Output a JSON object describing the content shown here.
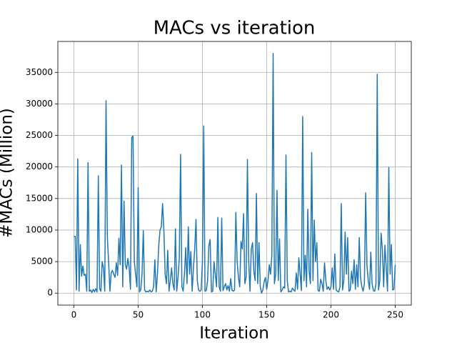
{
  "chart_data": {
    "type": "line",
    "title": "MACs vs iteration",
    "x_label": "Iteration",
    "y_label": "#MACs (Million)",
    "xlim": [
      -12.5,
      262.5
    ],
    "ylim": [
      -1900,
      39900
    ],
    "xticks": [
      0,
      50,
      100,
      150,
      200,
      250
    ],
    "yticks": [
      0,
      5000,
      10000,
      15000,
      20000,
      25000,
      30000,
      35000
    ],
    "grid": true,
    "x": [
      0,
      1,
      2,
      3,
      4,
      5,
      6,
      7,
      8,
      9,
      10,
      11,
      12,
      13,
      14,
      15,
      16,
      17,
      18,
      19,
      20,
      21,
      22,
      23,
      24,
      25,
      26,
      27,
      28,
      29,
      30,
      31,
      32,
      33,
      34,
      35,
      36,
      37,
      38,
      39,
      40,
      41,
      42,
      43,
      44,
      45,
      46,
      47,
      48,
      49,
      50,
      51,
      52,
      53,
      54,
      55,
      56,
      57,
      58,
      59,
      60,
      61,
      62,
      63,
      64,
      65,
      66,
      67,
      68,
      69,
      70,
      71,
      72,
      73,
      74,
      75,
      76,
      77,
      78,
      79,
      80,
      81,
      82,
      83,
      84,
      85,
      86,
      87,
      88,
      89,
      90,
      91,
      92,
      93,
      94,
      95,
      96,
      97,
      98,
      99,
      100,
      101,
      102,
      103,
      104,
      105,
      106,
      107,
      108,
      109,
      110,
      111,
      112,
      113,
      114,
      115,
      116,
      117,
      118,
      119,
      120,
      121,
      122,
      123,
      124,
      125,
      126,
      127,
      128,
      129,
      130,
      131,
      132,
      133,
      134,
      135,
      136,
      137,
      138,
      139,
      140,
      141,
      142,
      143,
      144,
      145,
      146,
      147,
      148,
      149,
      150,
      151,
      152,
      153,
      154,
      155,
      156,
      157,
      158,
      159,
      160,
      161,
      162,
      163,
      164,
      165,
      166,
      167,
      168,
      169,
      170,
      171,
      172,
      173,
      174,
      175,
      176,
      177,
      178,
      179,
      180,
      181,
      182,
      183,
      184,
      185,
      186,
      187,
      188,
      189,
      190,
      191,
      192,
      193,
      194,
      195,
      196,
      197,
      198,
      199,
      200,
      201,
      202,
      203,
      204,
      205,
      206,
      207,
      208,
      209,
      210,
      211,
      212,
      213,
      214,
      215,
      216,
      217,
      218,
      219,
      220,
      221,
      222,
      223,
      224,
      225,
      226,
      227,
      228,
      229,
      230,
      231,
      232,
      233,
      234,
      235,
      236,
      237,
      238,
      239,
      240,
      241,
      242,
      243,
      244,
      245,
      246,
      247,
      248,
      249,
      250
    ],
    "series": [
      {
        "color": "#1f77b4",
        "values": [
          9000,
          9000,
          500,
          21300,
          300,
          7700,
          2700,
          4300,
          2800,
          3000,
          300,
          20700,
          300,
          500,
          100,
          600,
          200,
          700,
          200,
          18600,
          700,
          300,
          5000,
          4000,
          300,
          30500,
          9000,
          5000,
          300,
          3200,
          3600,
          3000,
          2500,
          4800,
          2800,
          8700,
          4500,
          20300,
          1000,
          14600,
          4500,
          3800,
          5500,
          4000,
          600,
          24700,
          24900,
          5000,
          3000,
          1000,
          16700,
          200,
          500,
          3000,
          9900,
          500,
          200,
          300,
          200,
          500,
          200,
          300,
          1000,
          5300,
          200,
          3000,
          7500,
          10000,
          10500,
          14200,
          10000,
          3000,
          1500,
          6800,
          300,
          2000,
          4000,
          1500,
          500,
          10200,
          300,
          2500,
          5500,
          22000,
          1000,
          300,
          3000,
          7200,
          1500,
          10500,
          3000,
          6600,
          300,
          4000,
          7000,
          11700,
          2000,
          500,
          300,
          500,
          5000,
          26500,
          300,
          400,
          2000,
          7500,
          8500,
          200,
          300,
          5000,
          3000,
          1000,
          12000,
          1000,
          300,
          11900,
          400,
          1000,
          1500,
          500,
          1200,
          300,
          2300,
          500,
          300,
          500,
          12800,
          5000,
          2500,
          1000,
          8200,
          7000,
          12600,
          1500,
          2500,
          21200,
          5000,
          300,
          7000,
          8000,
          3500,
          2000,
          15800,
          1500,
          8000,
          1000,
          0,
          500,
          1800,
          2500,
          600,
          2000,
          4500,
          3000,
          6000,
          38000,
          1500,
          3000,
          16300,
          2000,
          8600,
          200,
          500,
          1000,
          800,
          21900,
          2000,
          200,
          300,
          200,
          800,
          500,
          300,
          3200,
          600,
          5600,
          3000,
          400,
          28000,
          2000,
          6000,
          1000,
          13300,
          3500,
          1500,
          22300,
          2000,
          11600,
          5000,
          8000,
          400,
          300,
          2200,
          1500,
          300,
          4800,
          2000,
          600,
          1000,
          500,
          1000,
          4000,
          600,
          6200,
          500,
          300,
          200,
          1000,
          14200,
          500,
          2000,
          9700,
          3000,
          8800,
          300,
          500,
          3500,
          1500,
          5300,
          600,
          4500,
          1000,
          8800,
          2500,
          1000,
          300,
          1500,
          15900,
          4500,
          2000,
          600,
          6500,
          1500,
          400,
          300,
          1500,
          34700,
          500,
          2000,
          9500,
          7000,
          1000,
          7600,
          4000,
          300,
          19900,
          3000,
          7700,
          500,
          600,
          4500
        ]
      }
    ]
  }
}
